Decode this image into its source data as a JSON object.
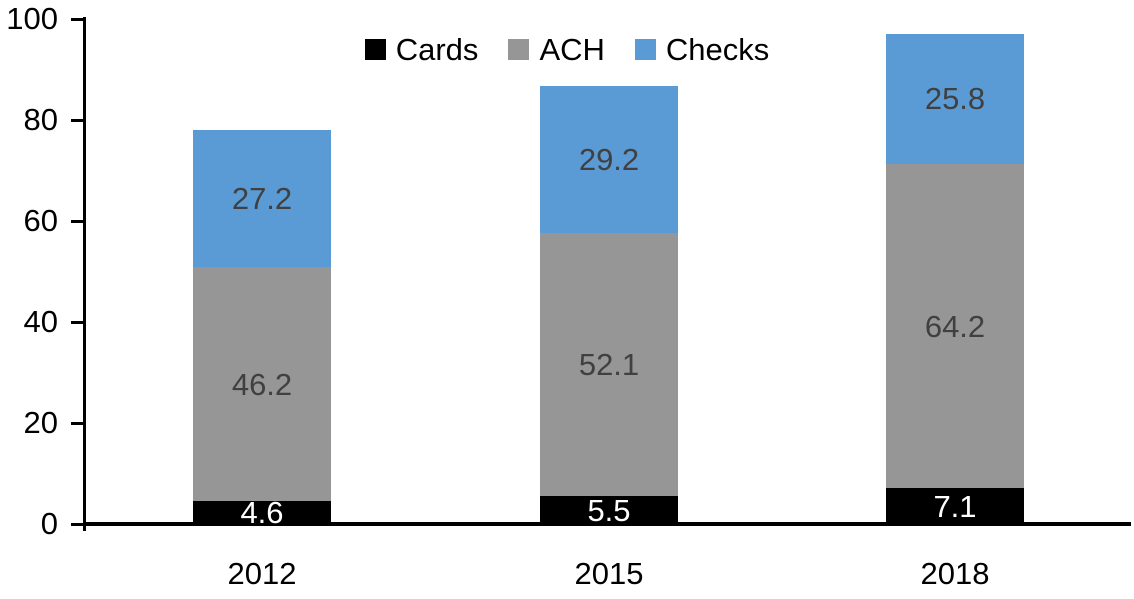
{
  "chart_data": {
    "type": "bar",
    "stacked": true,
    "title": "",
    "xlabel": "",
    "ylabel": "",
    "categories": [
      "2012",
      "2015",
      "2018"
    ],
    "series": [
      {
        "name": "Cards",
        "color": "#000000",
        "label_color": "#ffffff",
        "values": [
          4.6,
          5.5,
          7.1
        ]
      },
      {
        "name": "ACH",
        "color": "#969696",
        "label_color": "#404040",
        "values": [
          46.2,
          52.1,
          64.2
        ]
      },
      {
        "name": "Checks",
        "color": "#5b9bd5",
        "label_color": "#404040",
        "values": [
          27.2,
          29.2,
          25.8
        ]
      }
    ],
    "ylim": [
      0,
      100
    ],
    "yticks": [
      0,
      20,
      40,
      60,
      80,
      100
    ],
    "legend_position": "top-center",
    "grid": false,
    "axis_color": "#000000"
  }
}
